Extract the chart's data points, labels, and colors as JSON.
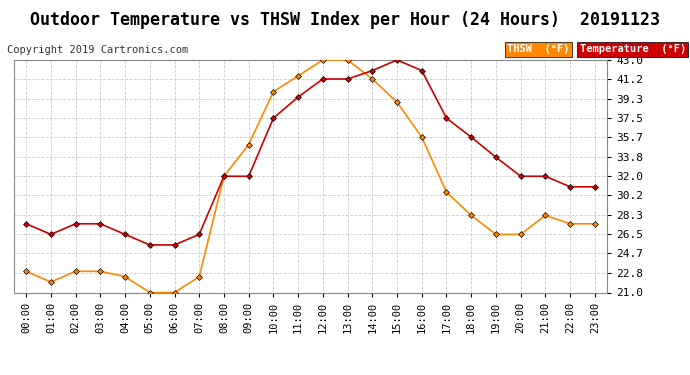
{
  "title": "Outdoor Temperature vs THSW Index per Hour (24 Hours)  20191123",
  "copyright": "Copyright 2019 Cartronics.com",
  "hours": [
    "00:00",
    "01:00",
    "02:00",
    "03:00",
    "04:00",
    "05:00",
    "06:00",
    "07:00",
    "08:00",
    "09:00",
    "10:00",
    "11:00",
    "12:00",
    "13:00",
    "14:00",
    "15:00",
    "16:00",
    "17:00",
    "18:00",
    "19:00",
    "20:00",
    "21:00",
    "22:00",
    "23:00"
  ],
  "temperature": [
    27.5,
    26.5,
    27.5,
    27.5,
    26.5,
    25.5,
    25.5,
    26.5,
    32.0,
    32.0,
    37.5,
    39.5,
    41.2,
    41.2,
    42.0,
    43.0,
    42.0,
    37.5,
    35.7,
    33.8,
    32.0,
    32.0,
    31.0,
    31.0
  ],
  "thsw": [
    23.0,
    22.0,
    23.0,
    23.0,
    22.5,
    21.0,
    21.0,
    22.5,
    32.0,
    35.0,
    40.0,
    41.5,
    43.0,
    43.0,
    41.2,
    39.0,
    35.7,
    30.5,
    28.3,
    26.5,
    26.5,
    28.3,
    27.5,
    27.5
  ],
  "temp_color": "#cc0000",
  "thsw_color": "#ff8800",
  "ylim_min": 21.0,
  "ylim_max": 43.0,
  "yticks": [
    21.0,
    22.8,
    24.7,
    26.5,
    28.3,
    30.2,
    32.0,
    33.8,
    35.7,
    37.5,
    39.3,
    41.2,
    43.0
  ],
  "background_color": "#ffffff",
  "plot_bg_color": "#ffffff",
  "grid_color": "#cccccc",
  "thsw_legend_bg": "#ff8800",
  "temp_legend_bg": "#cc0000",
  "legend_text_color": "#ffffff",
  "title_fontsize": 12,
  "copyright_fontsize": 7.5,
  "axis_label_fontsize": 7.5,
  "ytick_fontsize": 8,
  "marker": "D",
  "markersize": 3,
  "linewidth": 1.2
}
